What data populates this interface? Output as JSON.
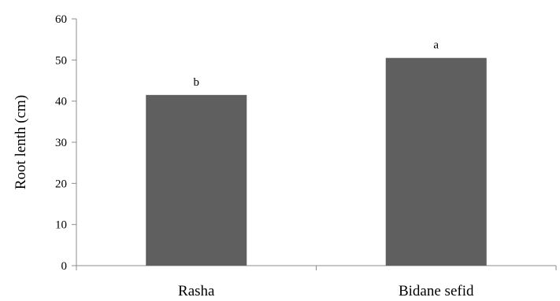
{
  "chart_data": {
    "type": "bar",
    "categories": [
      "Rasha",
      "Bidane sefid"
    ],
    "values": [
      41.5,
      50.5
    ],
    "data_labels": [
      "b",
      "a"
    ],
    "ylabel": "Root lenth (cm)",
    "xlabel": "",
    "ylim": [
      0,
      60
    ],
    "yticks": [
      0,
      10,
      20,
      30,
      40,
      50,
      60
    ],
    "bar_color": "#5f5f5f",
    "axis_color": "#8c8c8c",
    "grid": false,
    "legend": "none"
  }
}
